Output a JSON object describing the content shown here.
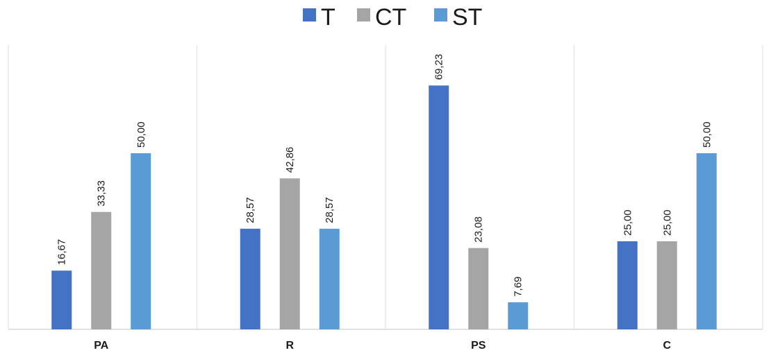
{
  "chart_data": {
    "type": "bar",
    "title": "",
    "xlabel": "",
    "ylabel": "",
    "categories": [
      "PA",
      "R",
      "PS",
      "C"
    ],
    "ylim": [
      0,
      80
    ],
    "grid": false,
    "legend_position": "top-center",
    "series": [
      {
        "name": "T",
        "color": "#4472c4",
        "values": [
          16.67,
          28.57,
          69.23,
          25.0
        ],
        "labels": [
          "16,67",
          "28,57",
          "69,23",
          "25,00"
        ]
      },
      {
        "name": "CT",
        "color": "#a5a5a5",
        "values": [
          33.33,
          42.86,
          23.08,
          25.0
        ],
        "labels": [
          "33,33",
          "42,86",
          "23,08",
          "25,00"
        ]
      },
      {
        "name": "ST",
        "color": "#5b9bd5",
        "values": [
          50.0,
          28.57,
          7.69,
          50.0
        ],
        "labels": [
          "50,00",
          "28,57",
          "7,69",
          "50,00"
        ]
      }
    ]
  }
}
